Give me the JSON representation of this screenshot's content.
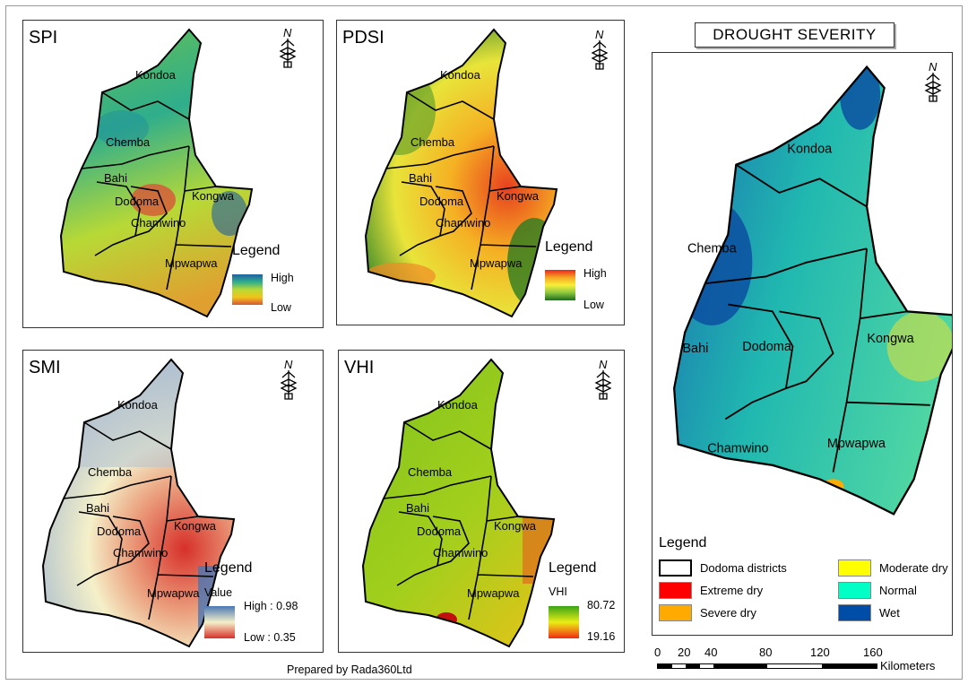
{
  "districts": [
    "Kondoa",
    "Chemba",
    "Bahi",
    "Dodoma",
    "Chamwino",
    "Kongwa",
    "Mpwapwa"
  ],
  "north_label": "N",
  "panels": {
    "spi": {
      "title": "SPI",
      "legend_title": "Legend",
      "high": "High",
      "low": "Low",
      "colors": [
        "#1f5fa0",
        "#2fae8c",
        "#b7d936",
        "#f0c419",
        "#d8553a"
      ]
    },
    "pdsi": {
      "title": "PDSI",
      "legend_title": "Legend",
      "high": "High",
      "low": "Low",
      "colors": [
        "#e8261f",
        "#f5a623",
        "#f7ef3a",
        "#8cc63f",
        "#1f6b1f"
      ]
    },
    "smi": {
      "title": "SMI",
      "legend_title": "Legend",
      "value_label": "Value",
      "high": "High : 0.98",
      "low": "Low : 0.35",
      "colors": [
        "#4a77b4",
        "#f4f0c9",
        "#d7302a"
      ]
    },
    "vhi": {
      "title": "VHI",
      "legend_title": "Legend",
      "value_label": "VHI",
      "high": "80.72",
      "low": "19.16",
      "colors": [
        "#3aa317",
        "#e9ee15",
        "#f42b12"
      ]
    }
  },
  "drought": {
    "title": "DROUGHT SEVERITY",
    "legend_title": "Legend",
    "classes": [
      {
        "label": "Dodoma districts",
        "color": "#ffffff"
      },
      {
        "label": "Moderate dry",
        "color": "#ffff00"
      },
      {
        "label": "Extreme dry",
        "color": "#ff0000"
      },
      {
        "label": "Normal",
        "color": "#00ffc5"
      },
      {
        "label": "Severe dry",
        "color": "#ffaa00"
      },
      {
        "label": "Wet",
        "color": "#004da8"
      }
    ],
    "scale_ticks": [
      "0",
      "20",
      "40",
      "80",
      "120",
      "160"
    ],
    "scale_unit": "Kilometers"
  },
  "footer": "Prepared by Rada360Ltd"
}
